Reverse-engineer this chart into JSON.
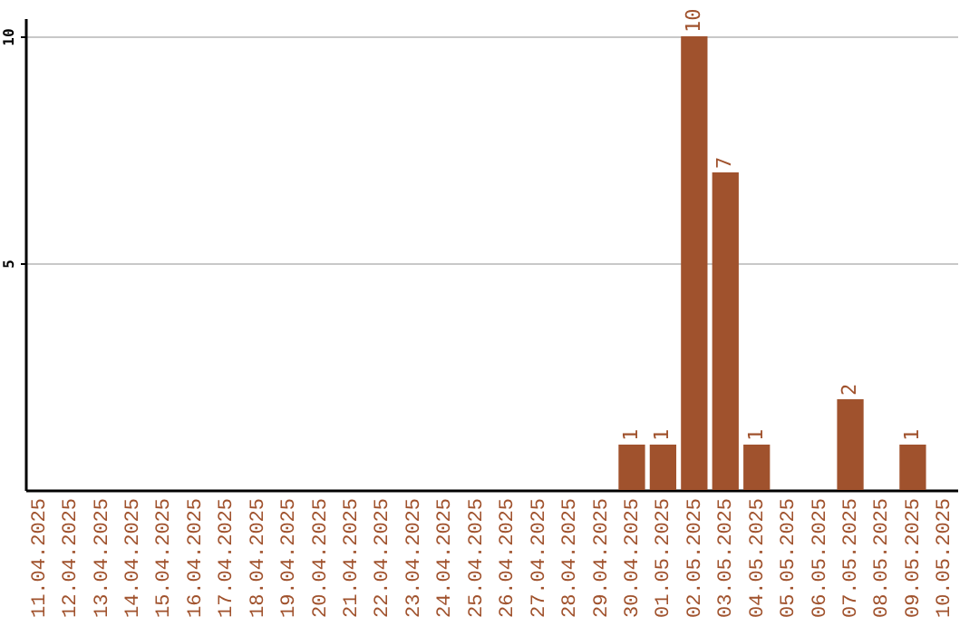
{
  "chart_data": {
    "type": "bar",
    "categories": [
      "11.04.2025",
      "12.04.2025",
      "13.04.2025",
      "14.04.2025",
      "15.04.2025",
      "16.04.2025",
      "17.04.2025",
      "18.04.2025",
      "19.04.2025",
      "20.04.2025",
      "21.04.2025",
      "22.04.2025",
      "23.04.2025",
      "24.04.2025",
      "25.04.2025",
      "26.04.2025",
      "27.04.2025",
      "28.04.2025",
      "29.04.2025",
      "30.04.2025",
      "01.05.2025",
      "02.05.2025",
      "03.05.2025",
      "04.05.2025",
      "05.05.2025",
      "06.05.2025",
      "07.05.2025",
      "08.05.2025",
      "09.05.2025",
      "10.05.2025"
    ],
    "values": [
      0,
      0,
      0,
      0,
      0,
      0,
      0,
      0,
      0,
      0,
      0,
      0,
      0,
      0,
      0,
      0,
      0,
      0,
      0,
      1,
      1,
      10,
      7,
      1,
      0,
      0,
      2,
      0,
      1,
      0
    ],
    "value_labels": [
      null,
      null,
      null,
      null,
      null,
      null,
      null,
      null,
      null,
      null,
      null,
      null,
      null,
      null,
      null,
      null,
      null,
      null,
      null,
      "1",
      "1",
      "10",
      "7",
      "1",
      null,
      null,
      "2",
      null,
      "1",
      null
    ],
    "color": "#a0522d",
    "ylim": [
      0,
      10.4
    ],
    "yticks": [
      5,
      10
    ],
    "grid": "y"
  }
}
